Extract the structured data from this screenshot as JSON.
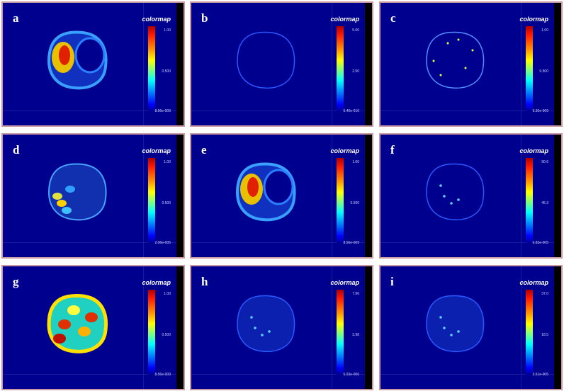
{
  "panels": [
    {
      "letter": "a",
      "colormap_label": "colormap",
      "max": "1.00",
      "mid": "0.500",
      "min": "8.56e-009",
      "style": "hot-liver"
    },
    {
      "letter": "b",
      "colormap_label": "colormap",
      "max": "5.00",
      "mid": "2.50",
      "min": "5.40e-010",
      "style": "faint"
    },
    {
      "letter": "c",
      "colormap_label": "colormap",
      "max": "1.00",
      "mid": "0.500",
      "min": "9.36e-009",
      "style": "speckle"
    },
    {
      "letter": "d",
      "colormap_label": "colormap",
      "max": "1.00",
      "mid": "0.500",
      "min": "2.06e-005",
      "style": "mixed"
    },
    {
      "letter": "e",
      "colormap_label": "colormap",
      "max": "1.00",
      "mid": "0.500",
      "min": "8.56e-009",
      "style": "hot-liver"
    },
    {
      "letter": "f",
      "colormap_label": "colormap",
      "max": "90.6",
      "mid": "45.3",
      "min": "6.83e-005",
      "style": "faint-dots"
    },
    {
      "letter": "g",
      "colormap_label": "colormap",
      "max": "1.00",
      "mid": "0.500",
      "min": "8.56e-009",
      "style": "full-hot"
    },
    {
      "letter": "h",
      "colormap_label": "colormap",
      "max": "7.96",
      "mid": "3.98",
      "min": "6.03e-006",
      "style": "blue-dots"
    },
    {
      "letter": "i",
      "colormap_label": "colormap",
      "max": "37.0",
      "mid": "18.5",
      "min": "3.51e-005",
      "style": "blue-dots2"
    }
  ]
}
